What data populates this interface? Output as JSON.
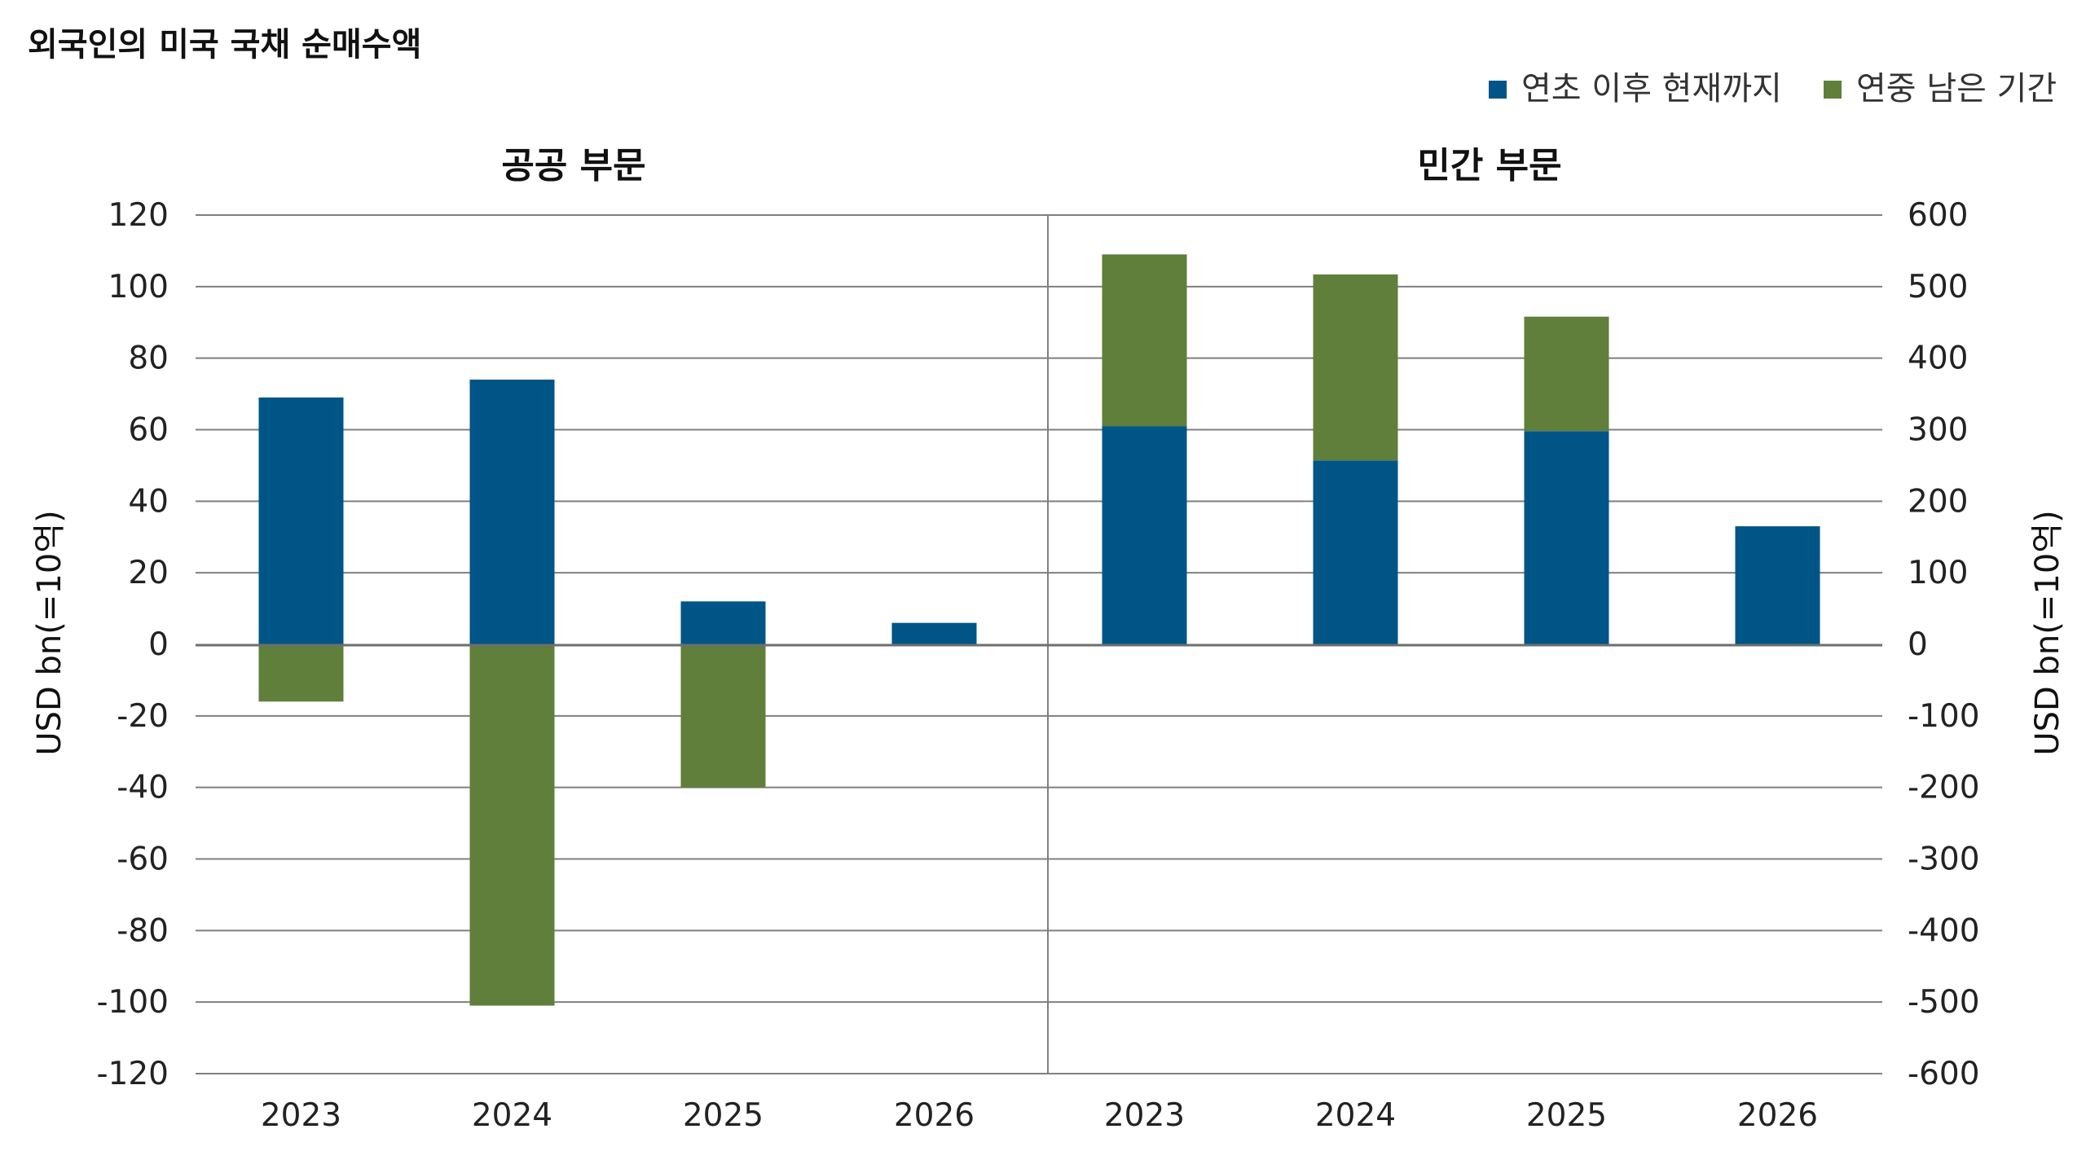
{
  "title": "외국인의 미국 국채 순매수액",
  "legend": [
    {
      "label": "연초 이후 현재까지",
      "color": "#005587"
    },
    {
      "label": "연중 남은 기간",
      "color": "#5f7f3a"
    }
  ],
  "chart_data": [
    {
      "type": "bar",
      "stacked": true,
      "title": "공공 부문",
      "categories": [
        "2023",
        "2024",
        "2025",
        "2026"
      ],
      "series": [
        {
          "name": "연초 이후 현재까지",
          "color": "#005587",
          "values": [
            69,
            74,
            12,
            6
          ]
        },
        {
          "name": "연중 남은 기간",
          "color": "#5f7f3a",
          "values": [
            -16,
            -101,
            -40,
            0
          ]
        }
      ],
      "ylim": [
        -120,
        120
      ],
      "yticks": [
        -120,
        -100,
        -80,
        -60,
        -40,
        -20,
        0,
        20,
        40,
        60,
        80,
        100,
        120
      ],
      "yticklabels": [
        "-120",
        "-100",
        "-80",
        "-60",
        "-40",
        "-20",
        "0",
        "20",
        "40",
        "60",
        "80",
        "100",
        "120"
      ],
      "ylabel": "USD bn(=10억)",
      "axis_side": "left",
      "grid": true
    },
    {
      "type": "bar",
      "stacked": true,
      "title": "민간 부문",
      "categories": [
        "2023",
        "2024",
        "2025",
        "2026"
      ],
      "series": [
        {
          "name": "연초 이후 현재까지",
          "color": "#005587",
          "values": [
            305,
            257,
            298,
            165
          ]
        },
        {
          "name": "연중 남은 기간",
          "color": "#5f7f3a",
          "values": [
            240,
            260,
            160,
            0
          ]
        }
      ],
      "ylim": [
        -600,
        600
      ],
      "yticks": [
        -600,
        -500,
        -400,
        -300,
        -200,
        -100,
        0,
        100,
        200,
        300,
        400,
        500,
        600
      ],
      "yticklabels": [
        "-600",
        "-500",
        "-400",
        "-300",
        "-200",
        "-100",
        "0",
        "100",
        "200",
        "300",
        "400",
        "500",
        "600"
      ],
      "ylabel": "USD bn(=10억)",
      "axis_side": "right",
      "grid": true
    }
  ]
}
